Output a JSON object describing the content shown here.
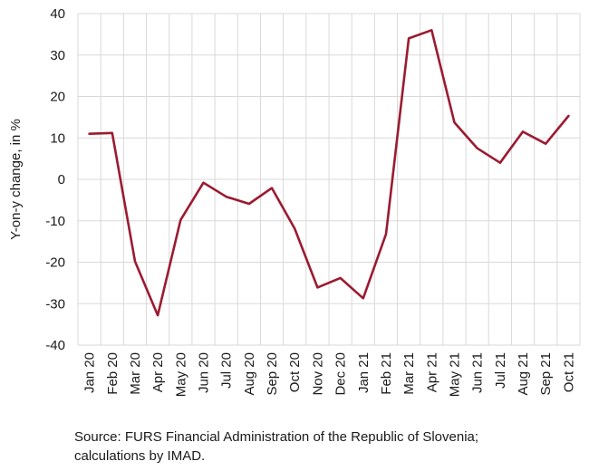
{
  "chart_data": {
    "type": "line",
    "categories": [
      "Jan 20",
      "Feb 20",
      "Mar 20",
      "Apr 20",
      "May 20",
      "Jun 20",
      "Jul 20",
      "Aug 20",
      "Sep 20",
      "Oct 20",
      "Nov 20",
      "Dec 20",
      "Jan 21",
      "Feb 21",
      "Mar 21",
      "Apr 21",
      "May 21",
      "Jun 21",
      "Jul 21",
      "Aug 21",
      "Sep 21",
      "Oct 21"
    ],
    "values": [
      11,
      11.2,
      -19.8,
      -32.8,
      -9.8,
      -0.8,
      -4.2,
      -5.9,
      -2.1,
      -11.9,
      -26.1,
      -23.8,
      -28.7,
      -13.2,
      34,
      36,
      13.7,
      7.5,
      4,
      11.5,
      8.6,
      15.3
    ],
    "series_color": "#9b1b30",
    "ylabel": "Y-on-y change, in %",
    "ylim": [
      -40,
      40
    ],
    "yticks": [
      40,
      30,
      20,
      10,
      0,
      -10,
      -20,
      -30,
      -40
    ],
    "ytick_labels": [
      "40",
      "30",
      "20",
      "10",
      "0",
      "-10",
      "-20",
      "-30",
      "-40"
    ],
    "grid": true,
    "legend": "none"
  },
  "source": "Source: FURS Financial Administration of the Republic of Slovenia; calculations by IMAD."
}
